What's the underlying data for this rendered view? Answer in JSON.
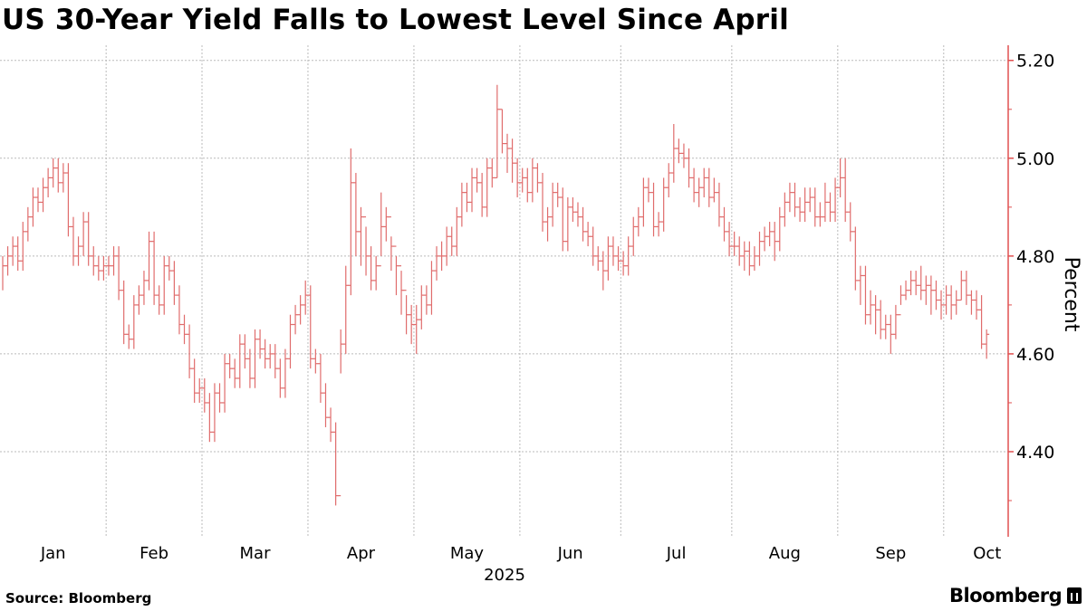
{
  "title": "US 30-Year Yield Falls to Lowest Level Since April",
  "source": "Source: Bloomberg",
  "logo_text": "Bloomberg",
  "colors": {
    "bar": "#e06c6c",
    "axis": "#e05050",
    "grid": "#bbbbbb"
  },
  "chart_data": {
    "type": "ohlc",
    "title": "US 30-Year Yield Falls to Lowest Level Since April",
    "ylabel": "Percent",
    "xlabel": "2025",
    "ylim": [
      4.226,
      5.231
    ],
    "yticks": [
      "5.20",
      "5.00",
      "4.80",
      "4.60",
      "4.40"
    ],
    "ytick_values": [
      5.2,
      5.0,
      4.8,
      4.6,
      4.4
    ],
    "minor_ticks": [
      5.1,
      4.9,
      4.7,
      4.5,
      4.3
    ],
    "grid": true,
    "months": [
      {
        "label": "Jan",
        "start": 0
      },
      {
        "label": "Feb",
        "start": 21
      },
      {
        "label": "Mar",
        "start": 40
      },
      {
        "label": "Apr",
        "start": 61
      },
      {
        "label": "May",
        "start": 82
      },
      {
        "label": "Jun",
        "start": 103
      },
      {
        "label": "Jul",
        "start": 123
      },
      {
        "label": "Aug",
        "start": 145
      },
      {
        "label": "Sep",
        "start": 166
      },
      {
        "label": "Oct",
        "start": 187
      }
    ],
    "close": [
      4.78,
      4.8,
      4.82,
      4.79,
      4.85,
      4.88,
      4.92,
      4.91,
      4.94,
      4.96,
      4.98,
      4.95,
      4.97,
      4.86,
      4.8,
      4.82,
      4.87,
      4.8,
      4.78,
      4.77,
      4.78,
      4.78,
      4.8,
      4.73,
      4.64,
      4.63,
      4.7,
      4.72,
      4.75,
      4.83,
      4.72,
      4.7,
      4.78,
      4.77,
      4.72,
      4.66,
      4.64,
      4.57,
      4.52,
      4.53,
      4.5,
      4.44,
      4.52,
      4.5,
      4.58,
      4.57,
      4.55,
      4.62,
      4.59,
      4.55,
      4.63,
      4.61,
      4.59,
      4.6,
      4.57,
      4.53,
      4.59,
      4.66,
      4.68,
      4.7,
      4.72,
      4.59,
      4.58,
      4.52,
      4.47,
      4.44,
      4.31,
      4.62,
      4.74,
      4.95,
      4.85,
      4.88,
      4.8,
      4.75,
      4.78,
      4.86,
      4.88,
      4.82,
      4.78,
      4.73,
      4.68,
      4.66,
      4.67,
      4.72,
      4.7,
      4.77,
      4.8,
      4.8,
      4.84,
      4.82,
      4.88,
      4.93,
      4.91,
      4.96,
      4.95,
      4.9,
      4.98,
      4.96,
      5.1,
      5.03,
      5.02,
      4.99,
      4.95,
      4.96,
      4.93,
      4.98,
      4.95,
      4.87,
      4.88,
      4.93,
      4.92,
      4.83,
      4.9,
      4.89,
      4.88,
      4.85,
      4.84,
      4.8,
      4.79,
      4.77,
      4.82,
      4.8,
      4.79,
      4.78,
      4.82,
      4.86,
      4.88,
      4.94,
      4.93,
      4.86,
      4.87,
      4.94,
      4.97,
      5.02,
      5.01,
      5.0,
      4.96,
      4.93,
      4.94,
      4.96,
      4.92,
      4.93,
      4.88,
      4.85,
      4.82,
      4.82,
      4.8,
      4.81,
      4.78,
      4.8,
      4.83,
      4.84,
      4.85,
      4.83,
      4.88,
      4.91,
      4.93,
      4.9,
      4.89,
      4.91,
      4.92,
      4.88,
      4.88,
      4.91,
      4.89,
      4.94,
      4.96,
      4.89,
      4.85,
      4.75,
      4.76,
      4.68,
      4.7,
      4.69,
      4.65,
      4.66,
      4.64,
      4.68,
      4.72,
      4.73,
      4.75,
      4.74,
      4.73,
      4.74,
      4.73,
      4.71,
      4.7,
      4.72,
      4.7,
      4.71,
      4.75,
      4.72,
      4.71,
      4.69,
      4.62,
      4.64
    ],
    "high": [
      4.8,
      4.82,
      4.84,
      4.84,
      4.87,
      4.9,
      4.94,
      4.94,
      4.96,
      4.98,
      5.0,
      5.0,
      4.99,
      4.99,
      4.88,
      4.84,
      4.89,
      4.89,
      4.82,
      4.8,
      4.8,
      4.8,
      4.82,
      4.82,
      4.75,
      4.66,
      4.72,
      4.74,
      4.77,
      4.85,
      4.85,
      4.74,
      4.8,
      4.8,
      4.79,
      4.74,
      4.68,
      4.66,
      4.59,
      4.55,
      4.55,
      4.52,
      4.54,
      4.54,
      4.6,
      4.6,
      4.59,
      4.64,
      4.64,
      4.61,
      4.65,
      4.65,
      4.63,
      4.62,
      4.62,
      4.59,
      4.61,
      4.68,
      4.7,
      4.72,
      4.75,
      4.74,
      4.61,
      4.6,
      4.54,
      4.49,
      4.46,
      4.65,
      4.78,
      5.02,
      4.97,
      4.9,
      4.86,
      4.82,
      4.8,
      4.93,
      4.9,
      4.84,
      4.8,
      4.77,
      4.72,
      4.7,
      4.7,
      4.74,
      4.74,
      4.79,
      4.82,
      4.83,
      4.86,
      4.86,
      4.9,
      4.95,
      4.95,
      4.98,
      4.98,
      4.97,
      5.0,
      5.0,
      5.15,
      5.1,
      5.05,
      5.04,
      5.0,
      4.98,
      4.98,
      5.0,
      4.99,
      4.97,
      4.9,
      4.95,
      4.95,
      4.94,
      4.92,
      4.92,
      4.91,
      4.9,
      4.87,
      4.86,
      4.82,
      4.81,
      4.84,
      4.84,
      4.82,
      4.81,
      4.84,
      4.88,
      4.9,
      4.96,
      4.96,
      4.95,
      4.89,
      4.96,
      4.99,
      5.07,
      5.04,
      5.03,
      5.02,
      4.98,
      4.96,
      4.98,
      4.98,
      4.96,
      4.95,
      4.9,
      4.87,
      4.85,
      4.84,
      4.83,
      4.83,
      4.82,
      4.85,
      4.86,
      4.87,
      4.87,
      4.9,
      4.93,
      4.95,
      4.95,
      4.92,
      4.94,
      4.94,
      4.94,
      4.91,
      4.95,
      4.93,
      4.96,
      5.0,
      5.0,
      4.91,
      4.86,
      4.78,
      4.78,
      4.73,
      4.72,
      4.71,
      4.68,
      4.68,
      4.7,
      4.74,
      4.75,
      4.77,
      4.77,
      4.78,
      4.76,
      4.76,
      4.75,
      4.73,
      4.74,
      4.74,
      4.73,
      4.77,
      4.77,
      4.73,
      4.73,
      4.72,
      4.65
    ],
    "low": [
      4.73,
      4.76,
      4.78,
      4.77,
      4.77,
      4.83,
      4.86,
      4.89,
      4.89,
      4.92,
      4.94,
      4.93,
      4.93,
      4.84,
      4.78,
      4.78,
      4.8,
      4.78,
      4.76,
      4.75,
      4.75,
      4.76,
      4.76,
      4.71,
      4.62,
      4.61,
      4.61,
      4.68,
      4.7,
      4.73,
      4.7,
      4.68,
      4.68,
      4.75,
      4.7,
      4.64,
      4.62,
      4.55,
      4.5,
      4.5,
      4.48,
      4.42,
      4.42,
      4.48,
      4.48,
      4.55,
      4.53,
      4.53,
      4.57,
      4.53,
      4.53,
      4.59,
      4.57,
      4.57,
      4.55,
      4.51,
      4.51,
      4.57,
      4.64,
      4.66,
      4.68,
      4.57,
      4.56,
      4.5,
      4.45,
      4.42,
      4.29,
      4.56,
      4.6,
      4.72,
      4.8,
      4.78,
      4.76,
      4.73,
      4.73,
      4.8,
      4.83,
      4.77,
      4.72,
      4.68,
      4.64,
      4.62,
      4.6,
      4.65,
      4.68,
      4.68,
      4.75,
      4.77,
      4.78,
      4.8,
      4.8,
      4.86,
      4.89,
      4.89,
      4.93,
      4.88,
      4.88,
      4.94,
      4.96,
      5.01,
      4.97,
      4.95,
      4.92,
      4.93,
      4.91,
      4.91,
      4.93,
      4.85,
      4.83,
      4.86,
      4.9,
      4.81,
      4.81,
      4.87,
      4.86,
      4.83,
      4.82,
      4.78,
      4.77,
      4.73,
      4.75,
      4.78,
      4.77,
      4.76,
      4.76,
      4.8,
      4.84,
      4.86,
      4.91,
      4.84,
      4.84,
      4.85,
      4.92,
      4.95,
      4.99,
      4.98,
      4.94,
      4.91,
      4.9,
      4.92,
      4.9,
      4.91,
      4.86,
      4.83,
      4.8,
      4.8,
      4.78,
      4.77,
      4.76,
      4.77,
      4.78,
      4.81,
      4.82,
      4.79,
      4.81,
      4.86,
      4.89,
      4.88,
      4.87,
      4.87,
      4.89,
      4.86,
      4.86,
      4.87,
      4.87,
      4.87,
      4.92,
      4.87,
      4.83,
      4.73,
      4.7,
      4.66,
      4.66,
      4.64,
      4.63,
      4.63,
      4.6,
      4.63,
      4.7,
      4.71,
      4.72,
      4.72,
      4.71,
      4.7,
      4.68,
      4.69,
      4.67,
      4.68,
      4.67,
      4.68,
      4.71,
      4.7,
      4.68,
      4.67,
      4.61,
      4.59
    ]
  }
}
